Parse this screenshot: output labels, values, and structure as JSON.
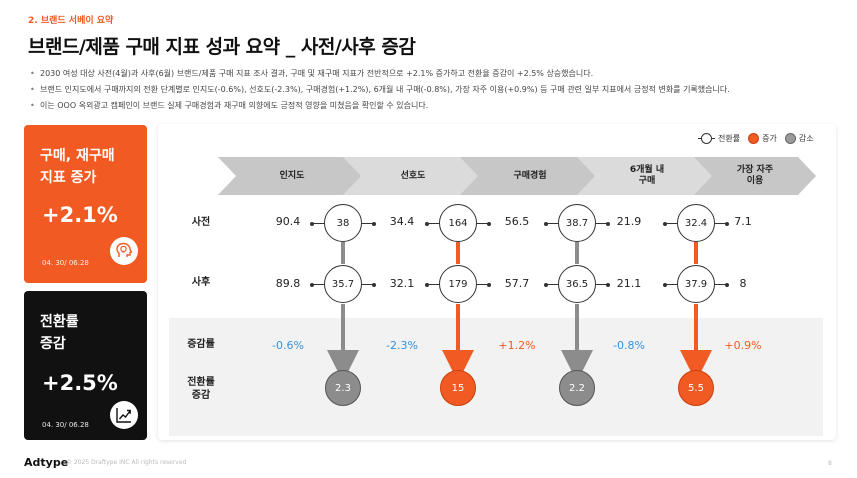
{
  "section_label": "2. 브랜드 서베이 요약",
  "title": "브랜드/제품 구매 지표 성과 요약 _ 사전/사후 증감",
  "bullets": [
    "2030 여성 대상 사전(4월)과 사후(6월) 브랜드/제품 구매 지표 조사 결과, 구매 및 재구매 지표가 전반적으로 +2.1% 증가하고 전환율 증감이 +2.5% 상승했습니다.",
    "브랜드 인지도에서 구매까지의 전환 단계별로 인지도(-0.6%), 선호도(-2.3%), 구매경험(+1.2%), 6개월 내 구매(-0.8%), 가장 자주 이용(+0.9%) 등 구매 관련 일부 지표에서 긍정적 변화를 기록했습니다.",
    "이는 OOO 옥외광고 캠페인이 브랜드 실제 구매경험과 재구매 의향에도 긍정적 영향을 미쳤음을 확인할 수 있습니다."
  ],
  "cards": {
    "purchase": {
      "title": "구매, 재구매\n지표 증가",
      "value": "+2.1%",
      "date": "04. 30/ 06.28",
      "icon": "head-lightbulb-icon"
    },
    "conversion": {
      "title": "전환률\n증감",
      "value": "+2.5%",
      "date": "04. 30/ 06.28",
      "icon": "growth-chart-icon"
    }
  },
  "legend": {
    "conversion": "전환률",
    "increase": "증가",
    "decrease": "감소"
  },
  "stages": [
    "인지도",
    "선호도",
    "구매경험",
    "6개월 내\n구매",
    "가장 자주\n이용"
  ],
  "row_labels": {
    "before": "사전",
    "after": "사후",
    "change": "증감률",
    "conversion_change": "전환률\n증감"
  },
  "before_values": [
    "90.4",
    "34.4",
    "56.5",
    "21.9",
    "7.1"
  ],
  "after_values": [
    "89.8",
    "32.1",
    "57.7",
    "21.1",
    "8"
  ],
  "change_values": [
    "-0.6%",
    "-2.3%",
    "+1.2%",
    "-0.8%",
    "+0.9%"
  ],
  "conversion_before": [
    "38",
    "164",
    "38.7",
    "32.4"
  ],
  "conversion_after": [
    "35.7",
    "179",
    "36.5",
    "37.9"
  ],
  "conversion_delta": [
    "2.3",
    "15",
    "2.2",
    "5.5"
  ],
  "colors": {
    "accent": "#f15a22",
    "decrease": "#8c8c8c",
    "negative_text": "#3a8fd9",
    "dark_card": "#111111"
  },
  "footer": {
    "logo": "Adtype",
    "copyright": "© 2025 Draftype INC All rights reserved",
    "page": "8"
  }
}
